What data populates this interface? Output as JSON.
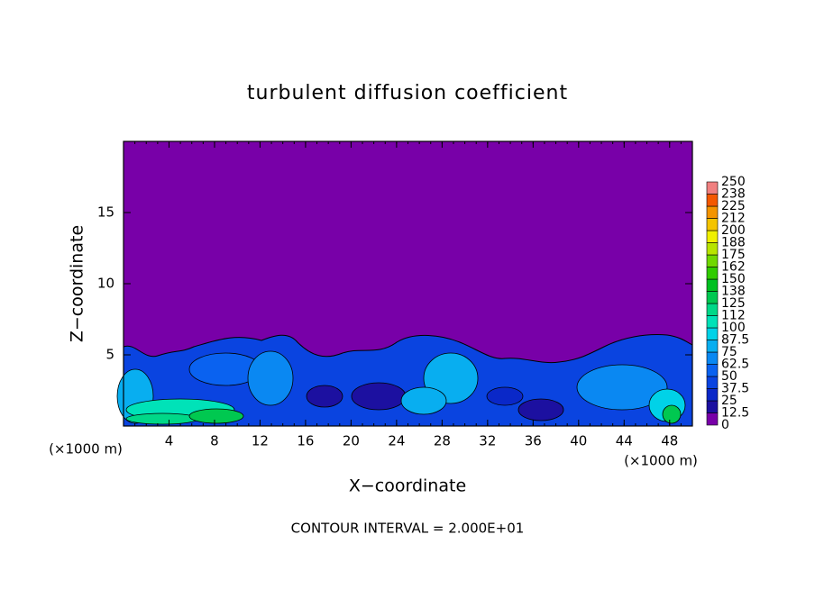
{
  "chart_data": {
    "type": "contour",
    "title": "turbulent diffusion coefficient",
    "x_label": "X−coordinate",
    "y_label": "Z−coordinate",
    "x_unit": "(×1000 m)",
    "footer": "CONTOUR INTERVAL = 2.000E+01",
    "xlim": [
      0,
      50
    ],
    "xticks": [
      4,
      8,
      12,
      16,
      20,
      24,
      28,
      32,
      36,
      40,
      44,
      48
    ],
    "ylim": [
      0,
      20
    ],
    "yticks": [
      5,
      10,
      15
    ],
    "colorbar": {
      "ticks": [
        0,
        12.5,
        25,
        37.5,
        50,
        62.5,
        75,
        87.5,
        100,
        112,
        125,
        138,
        150,
        162,
        175,
        188,
        200,
        212,
        225,
        238,
        250
      ],
      "colors": [
        "#7800a8",
        "#1c10a0",
        "#0a28c8",
        "#0a44e0",
        "#0a62f0",
        "#0a88f2",
        "#08aef0",
        "#00d2e8",
        "#00e2b8",
        "#00d888",
        "#00c850",
        "#00c020",
        "#30cc00",
        "#70d800",
        "#b8e400",
        "#f0f000",
        "#f4c400",
        "#f49400",
        "#f45800",
        "#f08080"
      ]
    }
  }
}
